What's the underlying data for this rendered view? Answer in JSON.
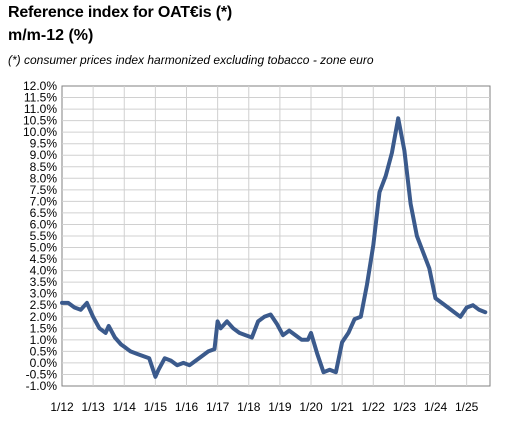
{
  "header": {
    "title": "Reference index for OAT€is (*)",
    "subtitle": "m/m-12 (%)",
    "note": "(*) consumer prices index harmonized excluding tobacco - zone euro"
  },
  "chart_data": {
    "type": "line",
    "title": "Reference index for OAT€is (*)",
    "subtitle": "m/m-12 (%)",
    "xlabel": "",
    "ylabel": "",
    "ylim": [
      -1.0,
      12.0
    ],
    "y_step": 0.5,
    "y_ticks": [
      "12.0%",
      "11.5%",
      "11.0%",
      "10.5%",
      "10.0%",
      "9.5%",
      "9.0%",
      "8.5%",
      "8.0%",
      "7.5%",
      "7.0%",
      "6.5%",
      "6.0%",
      "5.5%",
      "5.0%",
      "4.5%",
      "4.0%",
      "3.5%",
      "3.0%",
      "2.5%",
      "2.0%",
      "1.5%",
      "1.0%",
      "0.5%",
      "0.0%",
      "-0.5%",
      "-1.0%"
    ],
    "x_range": [
      2012.0,
      2025.75
    ],
    "x_ticks": [
      {
        "label": "1/12",
        "x": 2012.0
      },
      {
        "label": "1/13",
        "x": 2013.0
      },
      {
        "label": "1/14",
        "x": 2014.0
      },
      {
        "label": "1/15",
        "x": 2015.0
      },
      {
        "label": "1/16",
        "x": 2016.0
      },
      {
        "label": "1/17",
        "x": 2017.0
      },
      {
        "label": "1/18",
        "x": 2018.0
      },
      {
        "label": "1/19",
        "x": 2019.0
      },
      {
        "label": "1/20",
        "x": 2020.0
      },
      {
        "label": "1/21",
        "x": 2021.0
      },
      {
        "label": "1/22",
        "x": 2022.0
      },
      {
        "label": "1/23",
        "x": 2023.0
      },
      {
        "label": "1/24",
        "x": 2024.0
      },
      {
        "label": "1/25",
        "x": 2025.0
      }
    ],
    "grid": true,
    "legend": "none",
    "line_color": "#3b5a8c",
    "series": [
      {
        "x": [
          2012.0,
          2012.2,
          2012.4,
          2012.6,
          2012.8,
          2013.0,
          2013.2,
          2013.4,
          2013.5,
          2013.7,
          2013.9,
          2014.0,
          2014.2,
          2014.4,
          2014.6,
          2014.8,
          2015.0,
          2015.1,
          2015.3,
          2015.5,
          2015.7,
          2015.9,
          2016.1,
          2016.3,
          2016.5,
          2016.7,
          2016.9,
          2017.0,
          2017.1,
          2017.3,
          2017.5,
          2017.7,
          2017.9,
          2018.1,
          2018.3,
          2018.5,
          2018.7,
          2018.9,
          2019.1,
          2019.3,
          2019.5,
          2019.7,
          2019.9,
          2020.0,
          2020.2,
          2020.4,
          2020.6,
          2020.8,
          2021.0,
          2021.2,
          2021.4,
          2021.6,
          2021.8,
          2022.0,
          2022.2,
          2022.4,
          2022.6,
          2022.8,
          2023.0,
          2023.2,
          2023.4,
          2023.6,
          2023.8,
          2024.0,
          2024.2,
          2024.4,
          2024.6,
          2024.8,
          2025.0,
          2025.2,
          2025.4,
          2025.6
        ],
        "y": [
          2.6,
          2.6,
          2.4,
          2.3,
          2.6,
          2.0,
          1.5,
          1.3,
          1.6,
          1.1,
          0.8,
          0.7,
          0.5,
          0.4,
          0.3,
          0.2,
          -0.6,
          -0.3,
          0.2,
          0.1,
          -0.1,
          0.0,
          -0.1,
          0.1,
          0.3,
          0.5,
          0.6,
          1.8,
          1.5,
          1.8,
          1.5,
          1.3,
          1.2,
          1.1,
          1.8,
          2.0,
          2.1,
          1.7,
          1.2,
          1.4,
          1.2,
          1.0,
          1.0,
          1.3,
          0.4,
          -0.4,
          -0.3,
          -0.4,
          0.9,
          1.3,
          1.9,
          2.0,
          3.4,
          5.1,
          7.4,
          8.1,
          9.1,
          10.6,
          9.2,
          6.9,
          5.5,
          4.8,
          4.1,
          2.8,
          2.6,
          2.4,
          2.2,
          2.0,
          2.4,
          2.5,
          2.3,
          2.2
        ]
      }
    ]
  }
}
